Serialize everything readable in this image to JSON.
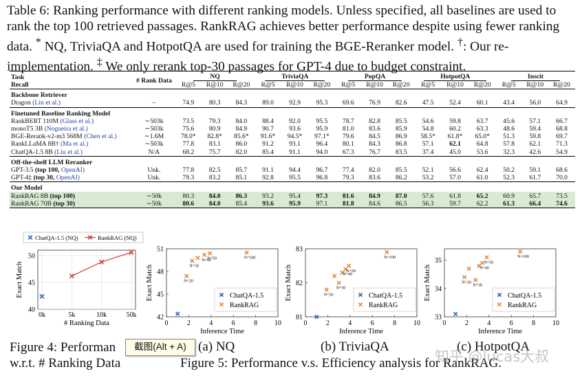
{
  "caption": {
    "part1": "Table 6: Ranking performance with different ranking models. Unless specified, all baselines are used to rank the top 100 retrieved passages. RankRAG achieves better performance despite using fewer ranking data.",
    "mark1": "*",
    "part2": " NQ, TriviaQA and HotpotQA are used for training the BGE-Reranker model.",
    "mark2": "†",
    "part3": ": Our re-implementation.",
    "mark3": "‡",
    "part4": " We only rerank top-30 passages for GPT-4 due to budget constraint."
  },
  "table": {
    "task_label": "Task",
    "recall_label": "Recall",
    "rank_data_label": "# Rank Data",
    "datasets": [
      "NQ",
      "TriviaQA",
      "PopQA",
      "HotpotQA",
      "Inscit"
    ],
    "metrics": [
      "R@5",
      "R@10",
      "R@20"
    ],
    "sections": [
      {
        "title": "Backbone Retriever",
        "rows": [
          {
            "name": "Dragon",
            "cite": "(Lin et al.)",
            "data": "–",
            "vals": [
              "74.9",
              "80.3",
              "84.3",
              "89.0",
              "92.9",
              "95.3",
              "69.6",
              "76.9",
              "82.6",
              "47.5",
              "52.4",
              "60.1",
              "43.4",
              "56.0",
              "64.9"
            ]
          }
        ]
      },
      {
        "title": "Finetuned Baseline Ranking Model",
        "rows": [
          {
            "name": "RankBERT 110M",
            "cite": "(Glass et al.)",
            "data": "∼503k",
            "vals": [
              "73.5",
              "79.3",
              "84.0",
              "88.4",
              "92.0",
              "95.5",
              "78.7",
              "82.8",
              "85.5",
              "54.6",
              "59.8",
              "63.7",
              "45.6",
              "57.1",
              "66.7"
            ]
          },
          {
            "name": "monoT5 3B",
            "cite": "(Nogueira et al.)",
            "data": "∼503k",
            "vals": [
              "75.6",
              "80.9",
              "84.9",
              "90.7",
              "93.6",
              "95.9",
              "81.0",
              "83.6",
              "85.9",
              "54.8",
              "60.2",
              "63.3",
              "48.6",
              "59.4",
              "68.8"
            ]
          },
          {
            "name": "BGE-Rerank-v2-m3 568M",
            "cite": "(Chen et al.)",
            "data": "∼1.6M",
            "vals": [
              "78.0*",
              "82.8*",
              "85.6*",
              "91.6*",
              "94.5*",
              "97.1*",
              "79.6",
              "84.5",
              "86.9",
              "58.5*",
              "61.8*",
              "65.0*",
              "51.3",
              "59.8",
              "69.7"
            ]
          },
          {
            "name": "RankLLaMA 8B†",
            "cite": "(Ma et al.)",
            "data": "∼503k",
            "vals": [
              "77.8",
              "83.1",
              "86.0",
              "91.2",
              "93.1",
              "96.4",
              "80.1",
              "84.3",
              "86.8",
              "57.1",
              "62.1",
              "64.8",
              "57.8",
              "62.1",
              "71.3"
            ]
          },
          {
            "name": "ChatQA-1.5 8B",
            "cite": "(Liu et al.)",
            "data": "N/A",
            "vals": [
              "68.2",
              "75.7",
              "82.0",
              "85.4",
              "91.1",
              "94.0",
              "67.3",
              "76.7",
              "83.5",
              "37.4",
              "45.0",
              "53.6",
              "32.3",
              "42.6",
              "54.9"
            ]
          }
        ]
      },
      {
        "title": "Off-the-shelf LLM Reranker",
        "rows": [
          {
            "name": "GPT-3.5",
            "bold_suffix": "(top 100,",
            "cite": "OpenAI)",
            "data": "Unk.",
            "vals": [
              "77.8",
              "82.5",
              "85.7",
              "91.1",
              "94.4",
              "96.7",
              "77.4",
              "82.0",
              "85.5",
              "52.1",
              "56.6",
              "62.4",
              "50.2",
              "59.1",
              "68.6"
            ]
          },
          {
            "name": "GPT-4‡",
            "bold_suffix": "(top 30,",
            "cite": "OpenAI)",
            "data": "Unk.",
            "vals": [
              "79.3",
              "83.2",
              "85.1",
              "92.8",
              "95.5",
              "96.8",
              "79.3",
              "83.6",
              "86.2",
              "53.2",
              "57.0",
              "61.0",
              "52.3",
              "61.7",
              "70.0"
            ]
          }
        ]
      },
      {
        "title": "Our Model",
        "ours": true,
        "rows": [
          {
            "name": "RankRAG 8B",
            "bold_suffix": "(top 100)",
            "data": "∼50k",
            "vals": [
              "80.3",
              "84.0",
              "86.3",
              "93.2",
              "95.4",
              "97.3",
              "81.6",
              "84.9",
              "87.0",
              "57.6",
              "61.8",
              "65.2",
              "60.9",
              "65.7",
              "73.5"
            ]
          },
          {
            "name": "RankRAG 70B",
            "bold_suffix": "(top 30)",
            "data": "∼50k",
            "vals": [
              "80.6",
              "84.0",
              "85.4",
              "93.6",
              "95.9",
              "97.1",
              "81.8",
              "84.6",
              "86.5",
              "56.3",
              "59.7",
              "62.2",
              "61.3",
              "66.4",
              "74.6"
            ]
          }
        ]
      }
    ]
  },
  "chart_data": [
    {
      "type": "line",
      "title": "Figure 4: Performance w.r.t. # Ranking Data",
      "xlabel": "# Ranking Data",
      "ylabel": "Exact Match",
      "categories": [
        "0k",
        "5k",
        "10k",
        "50k"
      ],
      "xticks": [
        "0k",
        "5k",
        "10k",
        "50k"
      ],
      "yticks": [
        40,
        45,
        50
      ],
      "ylim": [
        40,
        51
      ],
      "series": [
        {
          "name": "ChatQA-1.5 (NQ)",
          "color": "#2f5fa8",
          "marker": "x",
          "values": [
            42.4,
            null,
            null,
            null
          ]
        },
        {
          "name": "RankRAG (NQ)",
          "color": "#d0413b",
          "marker": "x",
          "values": [
            null,
            46.2,
            48.8,
            50.6
          ]
        }
      ],
      "legend": "top"
    },
    {
      "type": "scatter",
      "subtitle": "(a) NQ",
      "xlabel": "Inference Time",
      "ylabel": "Exact Match",
      "xlim": [
        0,
        10
      ],
      "ylim": [
        42,
        51
      ],
      "xticks": [
        0,
        2,
        4,
        6,
        8,
        10
      ],
      "yticks": [
        42,
        45,
        48,
        51
      ],
      "series": [
        {
          "name": "ChatQA-1.5",
          "color": "#2f5fa8",
          "points": [
            {
              "x": 1.0,
              "y": 42.4
            }
          ]
        },
        {
          "name": "RankRAG",
          "color": "#e08a3c",
          "points": [
            {
              "x": 1.8,
              "y": 47.4,
              "label": "N=20"
            },
            {
              "x": 2.3,
              "y": 49.4,
              "label": "N=30"
            },
            {
              "x": 2.8,
              "y": 49.8,
              "label": ""
            },
            {
              "x": 3.4,
              "y": 50.2,
              "label": "N=40"
            },
            {
              "x": 3.9,
              "y": 50.4,
              "label": "N=50"
            },
            {
              "x": 7.2,
              "y": 50.5,
              "label": "N=100"
            }
          ]
        }
      ],
      "legend": "bottom-right"
    },
    {
      "type": "scatter",
      "subtitle": "(b) TriviaQA",
      "xlabel": "Inference Time",
      "ylabel": "Exact Match",
      "xlim": [
        0,
        10
      ],
      "ylim": [
        81,
        83
      ],
      "xticks": [
        0,
        2,
        4,
        6,
        8,
        10
      ],
      "yticks": [
        81,
        82,
        83
      ],
      "series": [
        {
          "name": "ChatQA-1.5",
          "color": "#2f5fa8",
          "points": [
            {
              "x": 1.0,
              "y": 81.0
            }
          ]
        },
        {
          "name": "RankRAG",
          "color": "#e08a3c",
          "points": [
            {
              "x": 1.9,
              "y": 81.8,
              "label": "N=20"
            },
            {
              "x": 2.6,
              "y": 82.2,
              "label": ""
            },
            {
              "x": 3.0,
              "y": 82.0,
              "label": "N=30"
            },
            {
              "x": 3.3,
              "y": 82.3,
              "label": ""
            },
            {
              "x": 3.6,
              "y": 82.4,
              "label": "N=40"
            },
            {
              "x": 3.9,
              "y": 82.5,
              "label": "N=50"
            },
            {
              "x": 7.3,
              "y": 82.9,
              "label": "N=100"
            }
          ]
        }
      ],
      "legend": "bottom-right"
    },
    {
      "type": "scatter",
      "subtitle": "(c) HotpotQA",
      "xlabel": "Inference Time",
      "ylabel": "Exact Match",
      "xlim": [
        0,
        10
      ],
      "ylim": [
        33,
        35.4
      ],
      "xticks": [
        0,
        2,
        4,
        6,
        8,
        10
      ],
      "yticks": [
        33,
        34,
        35
      ],
      "series": [
        {
          "name": "ChatQA-1.5",
          "color": "#2f5fa8",
          "points": [
            {
              "x": 1.0,
              "y": 33.1
            }
          ]
        },
        {
          "name": "RankRAG",
          "color": "#e08a3c",
          "points": [
            {
              "x": 1.8,
              "y": 34.4,
              "label": "N=20"
            },
            {
              "x": 2.2,
              "y": 34.7,
              "label": ""
            },
            {
              "x": 2.8,
              "y": 34.3,
              "label": "N=30"
            },
            {
              "x": 3.1,
              "y": 34.8,
              "label": ""
            },
            {
              "x": 3.4,
              "y": 34.9,
              "label": "N=40"
            },
            {
              "x": 3.8,
              "y": 35.1,
              "label": "N=50"
            },
            {
              "x": 6.8,
              "y": 35.3,
              "label": "N=100"
            }
          ]
        }
      ],
      "legend": "bottom-right"
    }
  ],
  "figures": {
    "fig4_line1": "Figure 4: Performan",
    "fig4_line2": "w.r.t. # Ranking Data",
    "fig5_caption": "Figure 5: Performance v.s. Efficiency analysis for RankRAG.",
    "sub_a": "(a) NQ",
    "sub_b": "(b) TriviaQA",
    "sub_c": "(c) HotpotQA"
  },
  "overlay": {
    "tooltip": "截图(Alt + A)",
    "watermark": "知乎 @lucas大叔"
  }
}
